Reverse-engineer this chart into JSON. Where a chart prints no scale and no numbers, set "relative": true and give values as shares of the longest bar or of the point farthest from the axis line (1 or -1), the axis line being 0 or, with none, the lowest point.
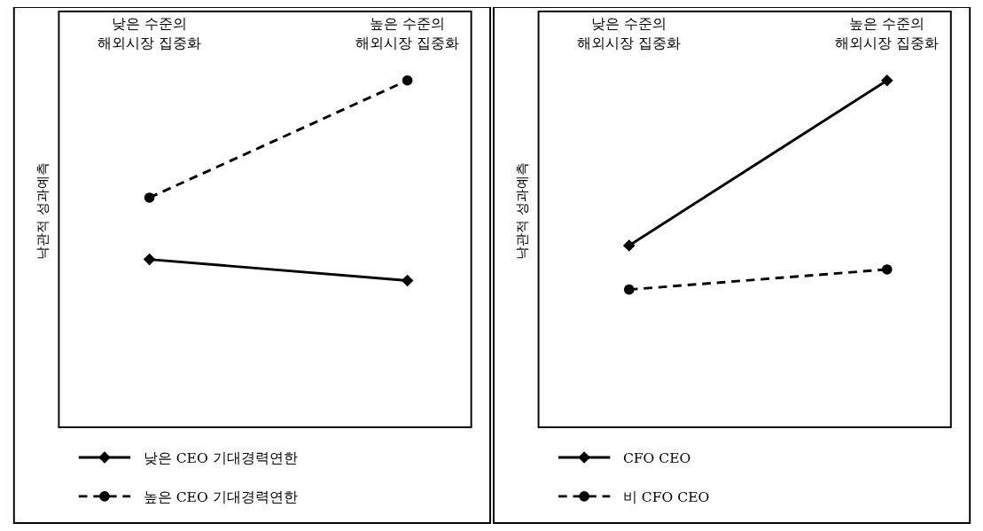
{
  "chart_data": [
    {
      "type": "line",
      "relative": true,
      "ylabel": "낙관적 성과예측",
      "categories": [
        "낮은 수준의\n해외시장 집중화",
        "높은 수준의\n해외시장 집중화"
      ],
      "legend": "bottom",
      "series": [
        {
          "name": "낮은 CEO 기대경력연한",
          "color": "#000000",
          "values": [
            0.484,
            0.423
          ],
          "marker": "diamond",
          "line_style": "solid"
        },
        {
          "name": "높은 CEO 기대경력연한",
          "color": "#000000",
          "values": [
            0.662,
            1
          ],
          "marker": "circle",
          "line_style": "dashed"
        }
      ]
    },
    {
      "type": "line",
      "relative": true,
      "ylabel": "낙관적 성과예측",
      "categories": [
        "낮은 수준의\n해외시장 집중화",
        "높은 수준의\n해외시장 집중화"
      ],
      "legend": "bottom",
      "series": [
        {
          "name": "CFO CEO",
          "color": "#000000",
          "values": [
            0.524,
            1
          ],
          "marker": "diamond",
          "line_style": "solid"
        },
        {
          "name": "비 CFO CEO",
          "color": "#000000",
          "values": [
            0.397,
            0.455
          ],
          "marker": "circle",
          "line_style": "dashed"
        }
      ]
    }
  ]
}
